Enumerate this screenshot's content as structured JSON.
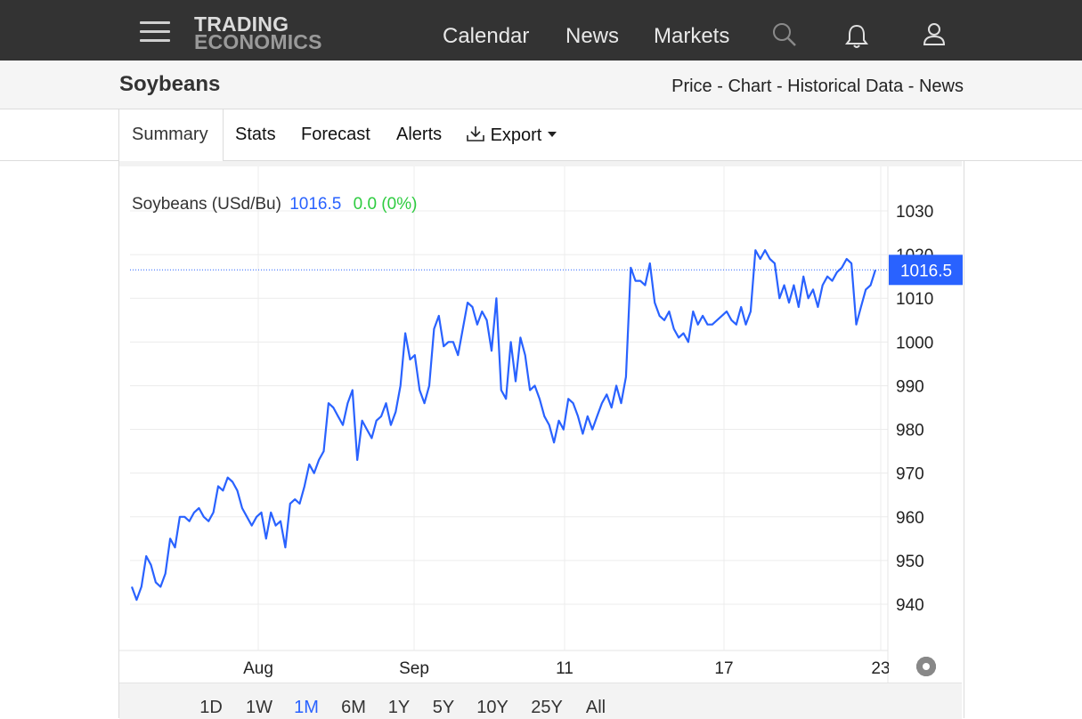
{
  "nav": {
    "logo_line1": "TRADING",
    "logo_line2": "ECONOMICS",
    "links": [
      "Calendar",
      "News",
      "Markets"
    ],
    "icons": [
      "menu-icon",
      "search-icon",
      "bell-icon",
      "user-icon"
    ]
  },
  "page": {
    "title": "Soybeans",
    "sublinks": [
      "Price",
      "Chart",
      "Historical Data",
      "News"
    ]
  },
  "tabs": [
    "Summary",
    "Stats",
    "Forecast",
    "Alerts",
    "Export"
  ],
  "chart_header": {
    "name": "Soybeans (USd/Bu)",
    "price": "1016.5",
    "change": "0.0 (0%)"
  },
  "ranges": [
    "1D",
    "1W",
    "1M",
    "6M",
    "1Y",
    "5Y",
    "10Y",
    "25Y",
    "All"
  ],
  "active_range": "1M",
  "colors": {
    "line": "#2962ff",
    "positive": "#2ecc40",
    "label_bg": "#2962ff"
  },
  "chart_data": {
    "type": "line",
    "x_tick_labels": [
      "Aug",
      "Sep",
      "11",
      "17",
      "23"
    ],
    "y_ticks": [
      940,
      950,
      960,
      970,
      980,
      990,
      1000,
      1010,
      1020,
      1030
    ],
    "ylim": [
      930,
      1040
    ],
    "last_value": 1016.5,
    "last_value_label": "1016.5",
    "grid": true,
    "series": [
      {
        "values": [
          944,
          941,
          944,
          951,
          949,
          945,
          944,
          947,
          955,
          953,
          960,
          960,
          959,
          961,
          962,
          960,
          959,
          961,
          967,
          966,
          969,
          968,
          966,
          962,
          960,
          958,
          960,
          961,
          955,
          961,
          958,
          959,
          953,
          963,
          964,
          963,
          967,
          972,
          970,
          973,
          975,
          986,
          985,
          983,
          981,
          986,
          989,
          973,
          982,
          980,
          978,
          982,
          983,
          986,
          981,
          984,
          990,
          1002,
          996,
          997,
          989,
          986,
          990,
          1003,
          1006,
          999,
          1000,
          1000,
          997,
          1003,
          1009,
          1008,
          1004,
          1007,
          1005,
          998,
          1010,
          989,
          987,
          1000,
          991,
          1001,
          997,
          989,
          990,
          987,
          983,
          981,
          977,
          982,
          980,
          987,
          986,
          983,
          979,
          983,
          980,
          983,
          986,
          988,
          985,
          990,
          986,
          992,
          1017,
          1014,
          1014,
          1013,
          1018,
          1009,
          1006,
          1005,
          1007,
          1003,
          1001,
          1002,
          1000,
          1007,
          1004,
          1006,
          1004,
          1004,
          1005,
          1006,
          1007,
          1005,
          1004,
          1008,
          1004,
          1007,
          1021,
          1019,
          1021,
          1019,
          1018,
          1010,
          1013,
          1009,
          1013,
          1008,
          1015,
          1010,
          1012,
          1008,
          1013,
          1015,
          1014,
          1016,
          1017,
          1019,
          1018,
          1004,
          1008,
          1012,
          1013,
          1016.5
        ]
      }
    ]
  }
}
